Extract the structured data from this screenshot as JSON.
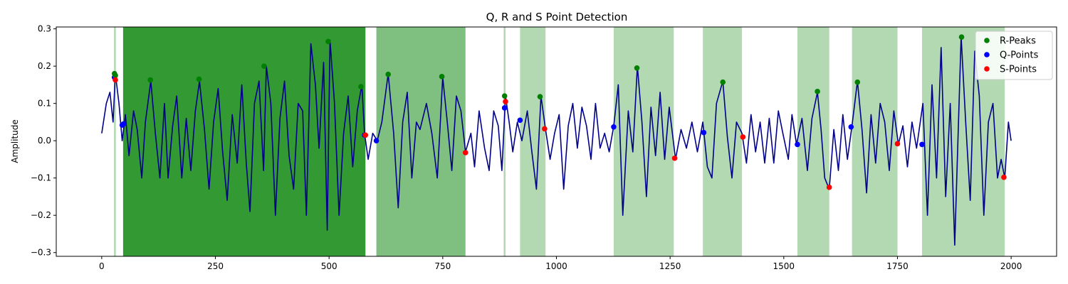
{
  "chart_data": {
    "type": "line",
    "title": "Q, R and S Point Detection",
    "xlabel": "",
    "ylabel": "Amplitude",
    "xlim": [
      -100,
      2100
    ],
    "ylim": [
      -0.31,
      0.305
    ],
    "x_ticks": [
      0,
      250,
      500,
      750,
      1000,
      1250,
      1500,
      1750,
      2000
    ],
    "x_tick_labels": [
      "0",
      "250",
      "500",
      "750",
      "1000",
      "1250",
      "1500",
      "1750",
      "2000"
    ],
    "y_ticks": [
      -0.3,
      -0.2,
      -0.1,
      0.0,
      0.1,
      0.2,
      0.3
    ],
    "y_tick_labels": [
      "−0.3",
      "−0.2",
      "−0.1",
      "0.0",
      "0.1",
      "0.2",
      "0.3"
    ],
    "grid": false,
    "legend_position": "top-right",
    "colors": {
      "signal": "#00008b",
      "r_peaks": "#008000",
      "q_points": "#0000ff",
      "s_points": "#ff0000",
      "span": "#008000"
    },
    "signal_keypoints": [
      [
        0,
        0.02
      ],
      [
        10,
        0.1
      ],
      [
        18,
        0.13
      ],
      [
        25,
        0.05
      ],
      [
        30,
        0.18
      ],
      [
        38,
        0.1
      ],
      [
        45,
        0.0
      ],
      [
        52,
        0.07
      ],
      [
        60,
        -0.04
      ],
      [
        70,
        0.08
      ],
      [
        78,
        0.03
      ],
      [
        88,
        -0.1
      ],
      [
        96,
        0.05
      ],
      [
        108,
        0.16
      ],
      [
        118,
        0.02
      ],
      [
        128,
        -0.1
      ],
      [
        138,
        0.1
      ],
      [
        146,
        -0.1
      ],
      [
        156,
        0.04
      ],
      [
        165,
        0.12
      ],
      [
        176,
        -0.1
      ],
      [
        186,
        0.06
      ],
      [
        196,
        -0.08
      ],
      [
        206,
        0.08
      ],
      [
        215,
        0.16
      ],
      [
        226,
        0.03
      ],
      [
        236,
        -0.13
      ],
      [
        246,
        0.05
      ],
      [
        256,
        0.14
      ],
      [
        266,
        -0.03
      ],
      [
        276,
        -0.16
      ],
      [
        287,
        0.07
      ],
      [
        298,
        -0.06
      ],
      [
        308,
        0.15
      ],
      [
        318,
        -0.06
      ],
      [
        326,
        -0.19
      ],
      [
        336,
        0.1
      ],
      [
        346,
        0.16
      ],
      [
        356,
        -0.08
      ],
      [
        362,
        0.2
      ],
      [
        372,
        0.1
      ],
      [
        382,
        -0.2
      ],
      [
        392,
        0.06
      ],
      [
        402,
        0.16
      ],
      [
        412,
        -0.04
      ],
      [
        422,
        -0.13
      ],
      [
        432,
        0.1
      ],
      [
        442,
        0.08
      ],
      [
        450,
        -0.2
      ],
      [
        460,
        0.26
      ],
      [
        470,
        0.15
      ],
      [
        478,
        -0.02
      ],
      [
        488,
        0.21
      ],
      [
        496,
        -0.24
      ],
      [
        502,
        0.27
      ],
      [
        512,
        0.1
      ],
      [
        522,
        -0.2
      ],
      [
        532,
        0.02
      ],
      [
        542,
        0.12
      ],
      [
        552,
        -0.07
      ],
      [
        562,
        0.08
      ],
      [
        572,
        0.15
      ],
      [
        578,
        0.02
      ],
      [
        586,
        -0.05
      ],
      [
        596,
        0.02
      ],
      [
        606,
        0.0
      ],
      [
        616,
        0.05
      ],
      [
        630,
        0.18
      ],
      [
        642,
        0.02
      ],
      [
        652,
        -0.18
      ],
      [
        662,
        0.05
      ],
      [
        672,
        0.13
      ],
      [
        682,
        -0.1
      ],
      [
        692,
        0.05
      ],
      [
        700,
        0.03
      ],
      [
        714,
        0.1
      ],
      [
        726,
        0.02
      ],
      [
        738,
        -0.1
      ],
      [
        750,
        0.17
      ],
      [
        760,
        0.05
      ],
      [
        770,
        -0.08
      ],
      [
        780,
        0.12
      ],
      [
        790,
        0.08
      ],
      [
        800,
        -0.03
      ],
      [
        812,
        0.02
      ],
      [
        820,
        -0.07
      ],
      [
        830,
        0.08
      ],
      [
        842,
        -0.02
      ],
      [
        852,
        -0.08
      ],
      [
        862,
        0.08
      ],
      [
        872,
        0.04
      ],
      [
        880,
        -0.08
      ],
      [
        888,
        0.12
      ],
      [
        896,
        0.05
      ],
      [
        904,
        -0.03
      ],
      [
        914,
        0.05
      ],
      [
        924,
        0.0
      ],
      [
        936,
        0.08
      ],
      [
        946,
        -0.03
      ],
      [
        956,
        -0.13
      ],
      [
        966,
        0.12
      ],
      [
        976,
        0.03
      ],
      [
        986,
        -0.05
      ],
      [
        996,
        0.02
      ],
      [
        1006,
        0.07
      ],
      [
        1016,
        -0.13
      ],
      [
        1026,
        0.04
      ],
      [
        1036,
        0.1
      ],
      [
        1046,
        -0.02
      ],
      [
        1056,
        0.09
      ],
      [
        1066,
        0.04
      ],
      [
        1076,
        -0.05
      ],
      [
        1086,
        0.1
      ],
      [
        1096,
        -0.02
      ],
      [
        1106,
        0.02
      ],
      [
        1116,
        -0.03
      ],
      [
        1126,
        0.04
      ],
      [
        1136,
        0.15
      ],
      [
        1146,
        -0.2
      ],
      [
        1158,
        0.08
      ],
      [
        1168,
        -0.03
      ],
      [
        1178,
        0.2
      ],
      [
        1188,
        0.05
      ],
      [
        1198,
        -0.15
      ],
      [
        1208,
        0.09
      ],
      [
        1218,
        -0.04
      ],
      [
        1228,
        0.13
      ],
      [
        1238,
        -0.05
      ],
      [
        1248,
        0.09
      ],
      [
        1262,
        -0.05
      ],
      [
        1274,
        0.03
      ],
      [
        1286,
        -0.02
      ],
      [
        1298,
        0.05
      ],
      [
        1310,
        -0.03
      ],
      [
        1322,
        0.05
      ],
      [
        1332,
        -0.07
      ],
      [
        1342,
        -0.1
      ],
      [
        1352,
        0.1
      ],
      [
        1366,
        0.16
      ],
      [
        1376,
        0.01
      ],
      [
        1386,
        -0.1
      ],
      [
        1396,
        0.05
      ],
      [
        1408,
        0.02
      ],
      [
        1418,
        -0.06
      ],
      [
        1428,
        0.07
      ],
      [
        1438,
        -0.03
      ],
      [
        1448,
        0.05
      ],
      [
        1458,
        -0.06
      ],
      [
        1468,
        0.06
      ],
      [
        1478,
        -0.06
      ],
      [
        1488,
        0.08
      ],
      [
        1498,
        0.02
      ],
      [
        1510,
        -0.05
      ],
      [
        1518,
        0.07
      ],
      [
        1528,
        -0.01
      ],
      [
        1540,
        0.06
      ],
      [
        1552,
        -0.08
      ],
      [
        1562,
        0.06
      ],
      [
        1574,
        0.13
      ],
      [
        1582,
        0.03
      ],
      [
        1590,
        -0.1
      ],
      [
        1600,
        -0.13
      ],
      [
        1610,
        0.03
      ],
      [
        1620,
        -0.08
      ],
      [
        1630,
        0.07
      ],
      [
        1640,
        -0.05
      ],
      [
        1650,
        0.04
      ],
      [
        1662,
        0.16
      ],
      [
        1672,
        0.03
      ],
      [
        1682,
        -0.14
      ],
      [
        1692,
        0.07
      ],
      [
        1702,
        -0.06
      ],
      [
        1712,
        0.1
      ],
      [
        1722,
        0.05
      ],
      [
        1732,
        -0.08
      ],
      [
        1742,
        0.08
      ],
      [
        1752,
        -0.01
      ],
      [
        1762,
        0.04
      ],
      [
        1772,
        -0.07
      ],
      [
        1782,
        0.05
      ],
      [
        1792,
        -0.02
      ],
      [
        1806,
        0.1
      ],
      [
        1816,
        -0.2
      ],
      [
        1826,
        0.15
      ],
      [
        1836,
        -0.1
      ],
      [
        1846,
        0.25
      ],
      [
        1856,
        -0.15
      ],
      [
        1866,
        0.1
      ],
      [
        1876,
        -0.28
      ],
      [
        1890,
        0.28
      ],
      [
        1900,
        0.05
      ],
      [
        1910,
        -0.16
      ],
      [
        1920,
        0.24
      ],
      [
        1930,
        0.12
      ],
      [
        1940,
        -0.2
      ],
      [
        1950,
        0.05
      ],
      [
        1960,
        0.1
      ],
      [
        1970,
        -0.1
      ],
      [
        1978,
        -0.05
      ],
      [
        1986,
        -0.1
      ],
      [
        1994,
        0.05
      ],
      [
        2000,
        0.0
      ]
    ],
    "series": [
      {
        "name": "R-Peaks",
        "type": "scatter",
        "x": [
          28,
          30,
          107,
          214,
          357,
          498,
          570,
          630,
          748,
          886,
          964,
          1177,
          1366,
          1574,
          1662,
          1891
        ],
        "y": [
          0.18,
          0.175,
          0.163,
          0.165,
          0.2,
          0.266,
          0.145,
          0.178,
          0.172,
          0.12,
          0.118,
          0.195,
          0.157,
          0.132,
          0.157,
          0.278
        ]
      },
      {
        "name": "Q-Points",
        "type": "scatter",
        "x": [
          28,
          45,
          48,
          578,
          604,
          886,
          920,
          1126,
          1324,
          1530,
          1648,
          1804
        ],
        "y": [
          0.17,
          0.042,
          0.045,
          0.015,
          0.0,
          0.088,
          0.055,
          0.037,
          0.022,
          -0.01,
          0.037,
          -0.01
        ]
      },
      {
        "name": "S-Points",
        "type": "scatter",
        "x": [
          30,
          580,
          800,
          888,
          974,
          1260,
          1410,
          1600,
          1750,
          1984
        ],
        "y": [
          0.163,
          0.015,
          -0.032,
          0.105,
          0.032,
          -0.047,
          0.01,
          -0.125,
          -0.008,
          -0.098
        ]
      }
    ],
    "shaded_spans": [
      {
        "x0": 27,
        "x1": 31,
        "alpha": 0.3
      },
      {
        "x0": 47,
        "x1": 580,
        "alpha": 0.8
      },
      {
        "x0": 604,
        "x1": 800,
        "alpha": 0.5
      },
      {
        "x0": 884,
        "x1": 888,
        "alpha": 0.3
      },
      {
        "x0": 920,
        "x1": 976,
        "alpha": 0.3
      },
      {
        "x0": 1126,
        "x1": 1258,
        "alpha": 0.3
      },
      {
        "x0": 1322,
        "x1": 1408,
        "alpha": 0.3
      },
      {
        "x0": 1530,
        "x1": 1600,
        "alpha": 0.3
      },
      {
        "x0": 1650,
        "x1": 1750,
        "alpha": 0.3
      },
      {
        "x0": 1804,
        "x1": 1986,
        "alpha": 0.3
      }
    ]
  }
}
